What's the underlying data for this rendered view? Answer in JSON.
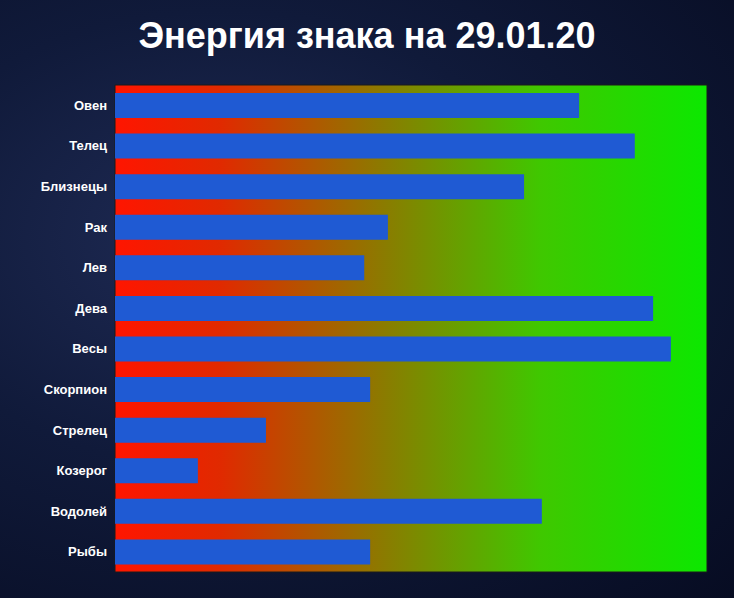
{
  "chart_data": {
    "type": "bar",
    "title": "Энергия знака на 29.01.20",
    "orientation": "horizontal",
    "categories": [
      "Овен",
      "Телец",
      "Близнецы",
      "Рак",
      "Лев",
      "Дева",
      "Весы",
      "Скорпион",
      "Стрелец",
      "Козерог",
      "Водолей",
      "Рыбы"
    ],
    "values": [
      78.4,
      87.8,
      69.1,
      46.1,
      42.1,
      90.9,
      93.9,
      43.1,
      25.5,
      14.0,
      72.1,
      43.1
    ],
    "color": "#1f5ad3",
    "xlim": [
      0,
      100
    ],
    "tick_labels": "y",
    "grid": false
  }
}
